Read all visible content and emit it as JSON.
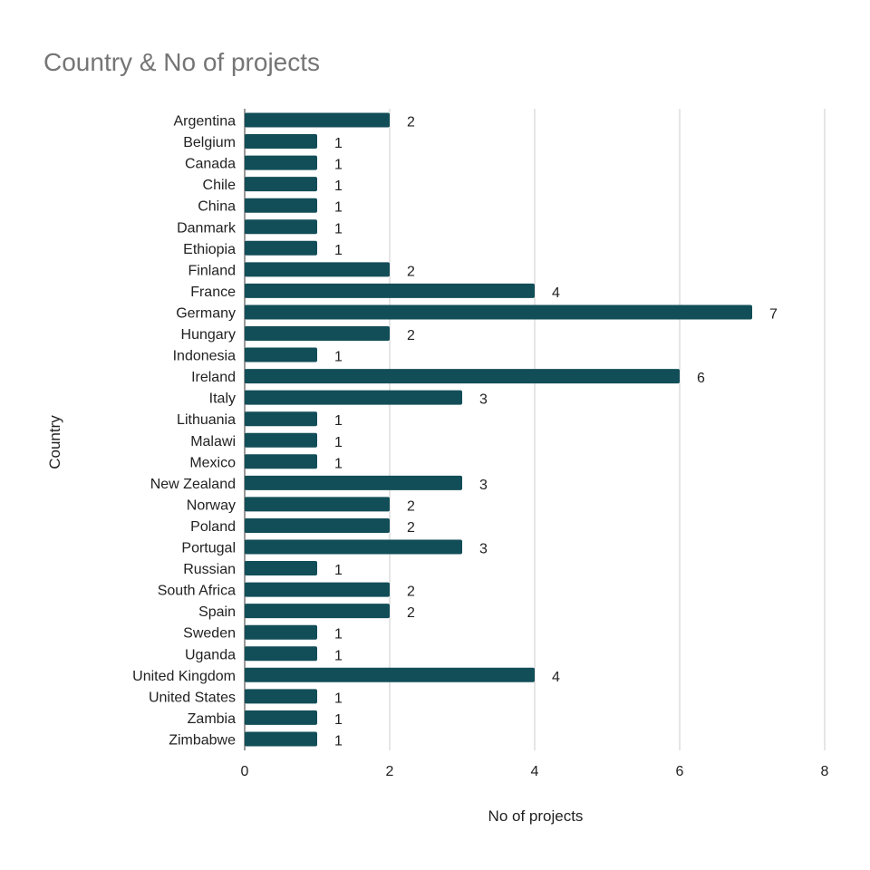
{
  "chart_data": {
    "type": "bar",
    "orientation": "horizontal",
    "title": "Country & No of projects",
    "xlabel": "No of projects",
    "ylabel": "Country",
    "xlim": [
      0,
      8
    ],
    "xticks": [
      "0",
      "2",
      "4",
      "6",
      "8"
    ],
    "grid": true,
    "legend": "none",
    "bar_color": "#124e58",
    "categories": [
      "Argentina",
      "Belgium",
      "Canada",
      "Chile",
      "China",
      "Danmark",
      "Ethiopia",
      "Finland",
      "France",
      "Germany",
      "Hungary",
      "Indonesia",
      "Ireland",
      "Italy",
      "Lithuania",
      "Malawi",
      "Mexico",
      "New Zealand",
      "Norway",
      "Poland",
      "Portugal",
      "Russian",
      "South Africa",
      "Spain",
      "Sweden",
      "Uganda",
      "United Kingdom",
      "United States",
      "Zambia",
      "Zimbabwe"
    ],
    "values": [
      2,
      1,
      1,
      1,
      1,
      1,
      1,
      2,
      4,
      7,
      2,
      1,
      6,
      3,
      1,
      1,
      1,
      3,
      2,
      2,
      3,
      1,
      2,
      2,
      1,
      1,
      4,
      1,
      1,
      1
    ]
  }
}
